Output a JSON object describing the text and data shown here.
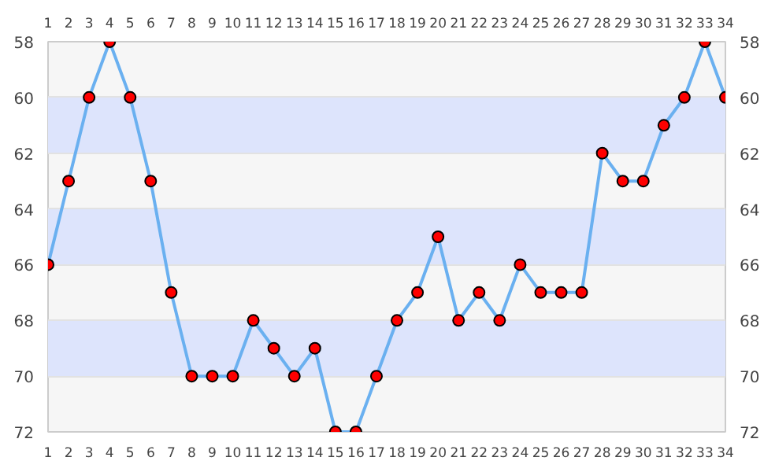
{
  "chart_data": {
    "type": "line",
    "x": [
      1,
      2,
      3,
      4,
      5,
      6,
      7,
      8,
      9,
      10,
      11,
      12,
      13,
      14,
      15,
      16,
      17,
      18,
      19,
      20,
      21,
      22,
      23,
      24,
      25,
      26,
      27,
      28,
      29,
      30,
      31,
      32,
      33,
      34
    ],
    "series": [
      {
        "color": "#6ab0f0",
        "values": [
          66,
          63,
          60,
          58,
          60,
          63,
          67,
          70,
          70,
          70,
          68,
          69,
          70,
          69,
          72,
          72,
          70,
          68,
          67,
          65,
          68,
          67,
          68,
          66,
          67,
          67,
          67,
          62,
          63,
          63,
          61,
          60,
          58,
          60
        ]
      }
    ],
    "xlim": [
      1,
      34
    ],
    "xticks": [
      1,
      2,
      3,
      4,
      5,
      6,
      7,
      8,
      9,
      10,
      11,
      12,
      13,
      14,
      15,
      16,
      17,
      18,
      19,
      20,
      21,
      22,
      23,
      24,
      25,
      26,
      27,
      28,
      29,
      30,
      31,
      32,
      33,
      34
    ],
    "x2lim": [
      1,
      34
    ],
    "x2ticks": [
      1,
      2,
      3,
      4,
      5,
      6,
      7,
      8,
      9,
      10,
      11,
      12,
      13,
      14,
      15,
      16,
      17,
      18,
      19,
      20,
      21,
      22,
      23,
      24,
      25,
      26,
      27,
      28,
      29,
      30,
      31,
      32,
      33,
      34
    ],
    "ylim": [
      72,
      58
    ],
    "yticks": [
      58,
      60,
      62,
      64,
      66,
      68,
      70,
      72
    ],
    "y2lim": [
      72,
      58
    ],
    "y2ticks": [
      58,
      60,
      62,
      64,
      66,
      68,
      70,
      72
    ],
    "grid": "y",
    "marker": "circle",
    "line_style": "solid"
  }
}
